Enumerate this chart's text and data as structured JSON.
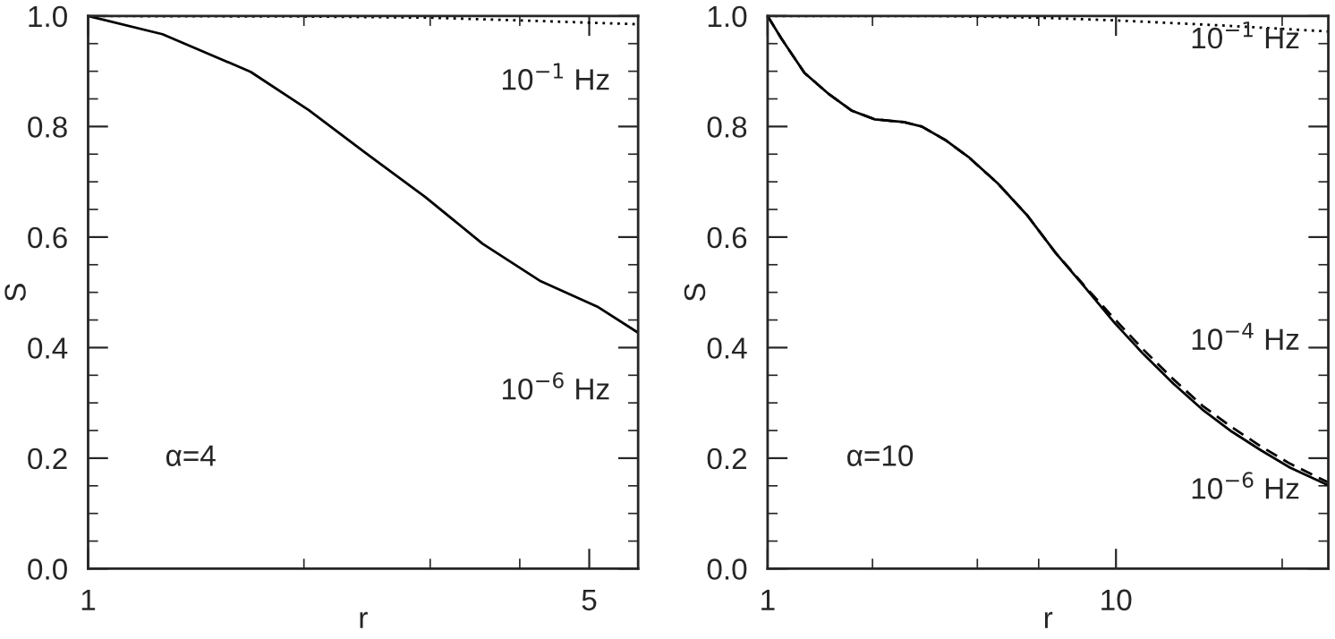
{
  "chart_data": [
    {
      "type": "line",
      "xlabel": "r",
      "ylabel": "S",
      "log": "x",
      "xlim": [
        1,
        5.85
      ],
      "ylim": [
        0,
        1.0
      ],
      "xticks": [
        1,
        {
          "value": 2,
          "label": null
        },
        {
          "value": 3,
          "label": null
        },
        {
          "value": 4,
          "label": null
        },
        5
      ],
      "yticks": [
        {
          "value": 0,
          "label": "0.0"
        },
        {
          "value": 0.05,
          "label": null
        },
        {
          "value": 0.1,
          "label": null
        },
        {
          "value": 0.15,
          "label": null
        },
        0.2,
        {
          "value": 0.25,
          "label": null
        },
        {
          "value": 0.3,
          "label": null
        },
        {
          "value": 0.35,
          "label": null
        },
        0.4,
        {
          "value": 0.45,
          "label": null
        },
        {
          "value": 0.5,
          "label": null
        },
        {
          "value": 0.55,
          "label": null
        },
        0.6,
        {
          "value": 0.65,
          "label": null
        },
        {
          "value": 0.7,
          "label": null
        },
        {
          "value": 0.75,
          "label": null
        },
        0.8,
        {
          "value": 0.85,
          "label": null
        },
        {
          "value": 0.9,
          "label": null
        },
        {
          "value": 0.95,
          "label": null
        },
        {
          "value": 1.0,
          "label": "1.0"
        }
      ],
      "grid": false,
      "legend": false,
      "series": [
        {
          "color": "#000000",
          "line_style": "dotted",
          "x": [
            1,
            2,
            3,
            4,
            5.85
          ],
          "values": [
            1.0,
            0.999,
            0.997,
            0.992,
            0.985
          ]
        },
        {
          "color": "#000000",
          "line_style": "solid",
          "x": [
            1,
            1.27,
            1.685,
            2.03,
            2.44,
            2.95,
            3.55,
            4.28,
            5.15,
            5.85
          ],
          "values": [
            1.0,
            0.967,
            0.899,
            0.83,
            0.752,
            0.673,
            0.588,
            0.52,
            0.473,
            0.427
          ]
        }
      ],
      "annotations": [
        "10$^{−1}$ Hz",
        "10$^{−6}$ Hz",
        "α=4"
      ]
    },
    {
      "type": "line",
      "xlabel": "r",
      "ylabel": "S",
      "log": "x",
      "xlim": [
        1,
        40.7
      ],
      "ylim": [
        0,
        1.0
      ],
      "xticks": [
        1,
        {
          "value": 2,
          "label": null
        },
        {
          "value": 4,
          "label": null
        },
        {
          "value": 6,
          "label": null
        },
        10,
        {
          "value": 30,
          "label": null
        }
      ],
      "yticks": [
        {
          "value": 0,
          "label": "0.0"
        },
        {
          "value": 0.05,
          "label": null
        },
        {
          "value": 0.1,
          "label": null
        },
        {
          "value": 0.15,
          "label": null
        },
        0.2,
        {
          "value": 0.25,
          "label": null
        },
        {
          "value": 0.3,
          "label": null
        },
        {
          "value": 0.35,
          "label": null
        },
        0.4,
        {
          "value": 0.45,
          "label": null
        },
        {
          "value": 0.5,
          "label": null
        },
        {
          "value": 0.55,
          "label": null
        },
        0.6,
        {
          "value": 0.65,
          "label": null
        },
        {
          "value": 0.7,
          "label": null
        },
        {
          "value": 0.75,
          "label": null
        },
        0.8,
        {
          "value": 0.85,
          "label": null
        },
        {
          "value": 0.9,
          "label": null
        },
        {
          "value": 0.95,
          "label": null
        },
        {
          "value": 1.0,
          "label": "1.0"
        }
      ],
      "grid": false,
      "legend": false,
      "series": [
        {
          "color": "#000000",
          "line_style": "dotted",
          "x": [
            1,
            3,
            6,
            10,
            20,
            40.7
          ],
          "values": [
            1.0,
            1.0,
            0.997,
            0.992,
            0.983,
            0.972
          ]
        },
        {
          "color": "#000000",
          "line_style": "dashed",
          "x": [
            1,
            1.093,
            1.276,
            1.49,
            1.74,
            2.03,
            2.46,
            2.77,
            3.23,
            3.77,
            4.58,
            5.55,
            6.72,
            8.17,
            9.9,
            12.0,
            14.6,
            17.7,
            21.5,
            26.1,
            31.6,
            40.7
          ],
          "values": [
            1.0,
            0.96,
            0.897,
            0.86,
            0.829,
            0.813,
            0.808,
            0.8,
            0.776,
            0.745,
            0.697,
            0.64,
            0.571,
            0.51,
            0.452,
            0.396,
            0.343,
            0.295,
            0.256,
            0.221,
            0.19,
            0.156
          ]
        },
        {
          "color": "#000000",
          "line_style": "solid",
          "x": [
            1,
            1.093,
            1.276,
            1.49,
            1.74,
            2.03,
            2.46,
            2.77,
            3.23,
            3.77,
            4.58,
            5.55,
            6.72,
            8.17,
            9.9,
            12.0,
            14.6,
            17.7,
            21.5,
            26.1,
            31.6,
            40.7
          ],
          "values": [
            1.0,
            0.96,
            0.897,
            0.86,
            0.829,
            0.813,
            0.808,
            0.8,
            0.776,
            0.745,
            0.697,
            0.64,
            0.571,
            0.508,
            0.445,
            0.388,
            0.335,
            0.288,
            0.248,
            0.214,
            0.183,
            0.151
          ]
        }
      ],
      "annotations": [
        "10$^{−1}$ Hz",
        "10$^{−4}$ Hz",
        "10$^{−6}$ Hz",
        "α=10"
      ]
    }
  ]
}
